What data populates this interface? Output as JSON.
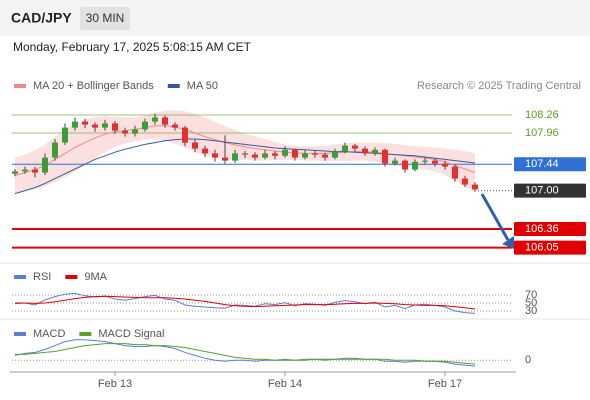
{
  "chart_data": {
    "type": "candlestick",
    "title": "CAD/JPY",
    "timeframe": "30 MIN",
    "subtitle": "Monday, February 17, 2025 5:08:15 AM CET",
    "source": "Research © 2025 Trading Central",
    "categories": [
      null,
      null,
      null,
      null,
      null,
      null,
      null,
      null,
      null,
      null,
      "Feb 13",
      null,
      null,
      null,
      null,
      null,
      null,
      null,
      null,
      null,
      null,
      null,
      null,
      null,
      null,
      null,
      null,
      "Feb 14",
      null,
      null,
      null,
      null,
      null,
      null,
      null,
      null,
      null,
      null,
      null,
      null,
      null,
      null,
      null,
      "Feb 17",
      null,
      null,
      null
    ],
    "up_color": "#3a9d3a",
    "down_color": "#e03030",
    "ylim": [
      105.81,
      109.01
    ],
    "ohlc": [
      [
        107.28,
        107.36,
        107.24,
        107.32
      ],
      [
        107.32,
        107.4,
        107.28,
        107.35
      ],
      [
        107.35,
        107.4,
        107.22,
        107.3
      ],
      [
        107.3,
        107.62,
        107.26,
        107.55
      ],
      [
        107.55,
        107.86,
        107.5,
        107.8
      ],
      [
        107.8,
        108.12,
        107.76,
        108.05
      ],
      [
        108.05,
        108.22,
        108.0,
        108.15
      ],
      [
        108.15,
        108.2,
        108.04,
        108.1
      ],
      [
        108.1,
        108.14,
        107.98,
        108.05
      ],
      [
        108.05,
        108.18,
        108.0,
        108.12
      ],
      [
        108.12,
        108.16,
        107.95,
        108.0
      ],
      [
        108.0,
        108.05,
        107.9,
        107.95
      ],
      [
        107.95,
        108.08,
        107.9,
        108.02
      ],
      [
        108.02,
        108.2,
        107.98,
        108.15
      ],
      [
        108.15,
        108.28,
        108.1,
        108.22
      ],
      [
        108.22,
        108.25,
        108.05,
        108.1
      ],
      [
        108.1,
        108.14,
        108.0,
        108.05
      ],
      [
        108.05,
        108.08,
        107.74,
        107.8
      ],
      [
        107.8,
        107.85,
        107.64,
        107.7
      ],
      [
        107.7,
        107.75,
        107.56,
        107.62
      ],
      [
        107.62,
        107.68,
        107.48,
        107.55
      ],
      [
        107.55,
        107.92,
        107.45,
        107.5
      ],
      [
        107.5,
        107.68,
        107.46,
        107.62
      ],
      [
        107.62,
        107.66,
        107.54,
        107.6
      ],
      [
        107.6,
        107.64,
        107.5,
        107.55
      ],
      [
        107.55,
        107.68,
        107.52,
        107.62
      ],
      [
        107.62,
        107.66,
        107.52,
        107.58
      ],
      [
        107.58,
        107.74,
        107.55,
        107.68
      ],
      [
        107.68,
        107.7,
        107.5,
        107.55
      ],
      [
        107.55,
        107.67,
        107.52,
        107.62
      ],
      [
        107.62,
        107.66,
        107.55,
        107.6
      ],
      [
        107.6,
        107.63,
        107.5,
        107.55
      ],
      [
        107.55,
        107.7,
        107.52,
        107.65
      ],
      [
        107.65,
        107.8,
        107.62,
        107.75
      ],
      [
        107.75,
        107.78,
        107.65,
        107.7
      ],
      [
        107.7,
        107.74,
        107.58,
        107.62
      ],
      [
        107.62,
        107.72,
        107.58,
        107.68
      ],
      [
        107.68,
        107.7,
        107.4,
        107.45
      ],
      [
        107.45,
        107.55,
        107.42,
        107.5
      ],
      [
        107.5,
        107.52,
        107.3,
        107.35
      ],
      [
        107.35,
        107.52,
        107.32,
        107.48
      ],
      [
        107.48,
        107.55,
        107.44,
        107.5
      ],
      [
        107.5,
        107.53,
        107.4,
        107.45
      ],
      [
        107.45,
        107.5,
        107.35,
        107.4
      ],
      [
        107.4,
        107.43,
        107.15,
        107.2
      ],
      [
        107.2,
        107.25,
        107.06,
        107.1
      ],
      [
        107.1,
        107.14,
        106.98,
        107.02
      ]
    ],
    "overlays": [
      {
        "name": "MA 20 + Bollinger Bands",
        "color": "#f08a8a",
        "band_color": "#fbd3d3",
        "values": [
          107.25,
          107.3,
          107.35,
          107.42,
          107.52,
          107.62,
          107.72,
          107.8,
          107.88,
          107.94,
          107.98,
          108.0,
          108.02,
          108.05,
          108.08,
          108.08,
          108.06,
          108.02,
          107.96,
          107.9,
          107.85,
          107.8,
          107.76,
          107.73,
          107.7,
          107.68,
          107.66,
          107.64,
          107.63,
          107.62,
          107.62,
          107.62,
          107.63,
          107.64,
          107.65,
          107.65,
          107.64,
          107.62,
          107.6,
          107.58,
          107.56,
          107.54,
          107.52,
          107.48,
          107.42,
          107.36,
          107.3
        ],
        "upper": [
          107.55,
          107.6,
          107.67,
          107.77,
          107.9,
          108.02,
          108.12,
          108.18,
          108.23,
          108.24,
          108.23,
          108.22,
          108.22,
          108.25,
          108.3,
          108.33,
          108.34,
          108.32,
          108.28,
          108.22,
          108.15,
          108.08,
          108.01,
          107.95,
          107.9,
          107.86,
          107.81,
          107.77,
          107.75,
          107.74,
          107.74,
          107.75,
          107.77,
          107.79,
          107.8,
          107.8,
          107.8,
          107.79,
          107.78,
          107.76,
          107.74,
          107.73,
          107.72,
          107.7,
          107.68,
          107.66,
          107.62
        ],
        "lower": [
          106.95,
          107.0,
          107.03,
          107.07,
          107.14,
          107.22,
          107.32,
          107.42,
          107.53,
          107.64,
          107.73,
          107.78,
          107.82,
          107.85,
          107.86,
          107.83,
          107.78,
          107.72,
          107.64,
          107.58,
          107.55,
          107.52,
          107.51,
          107.51,
          107.5,
          107.5,
          107.51,
          107.51,
          107.51,
          107.5,
          107.5,
          107.49,
          107.49,
          107.49,
          107.5,
          107.5,
          107.48,
          107.45,
          107.42,
          107.4,
          107.38,
          107.35,
          107.32,
          107.26,
          107.16,
          107.06,
          106.98
        ]
      },
      {
        "name": "MA 50",
        "color": "#3b5998",
        "values": [
          106.95,
          107.0,
          107.05,
          107.12,
          107.2,
          107.28,
          107.36,
          107.44,
          107.52,
          107.58,
          107.64,
          107.69,
          107.73,
          107.77,
          107.8,
          107.83,
          107.85,
          107.86,
          107.86,
          107.85,
          107.83,
          107.81,
          107.79,
          107.77,
          107.75,
          107.73,
          107.71,
          107.7,
          107.69,
          107.68,
          107.67,
          107.66,
          107.65,
          107.65,
          107.64,
          107.63,
          107.62,
          107.61,
          107.6,
          107.59,
          107.58,
          107.56,
          107.54,
          107.52,
          107.5,
          107.48,
          107.46
        ]
      }
    ],
    "levels": [
      {
        "value": 108.26,
        "label": "108.26",
        "color": "#5aa02c",
        "line": "solid",
        "boxed": false
      },
      {
        "value": 107.96,
        "label": "107.96",
        "color": "#5aa02c",
        "line": "solid",
        "boxed": false
      },
      {
        "value": 107.44,
        "label": "107.44",
        "color": "#2f6fd6",
        "line": "solid",
        "boxed": true
      },
      {
        "value": 107.0,
        "label": "107.00",
        "color": "#333333",
        "line": "dotted",
        "boxed": true
      },
      {
        "value": 106.36,
        "label": "106.36",
        "color": "#e00000",
        "line": "solid",
        "boxed": true
      },
      {
        "value": 106.05,
        "label": "106.05",
        "color": "#e00000",
        "line": "solid",
        "boxed": true
      }
    ],
    "rsi": {
      "ylim": [
        17.5,
        87.5
      ],
      "yticks": [
        70,
        50,
        30
      ],
      "series": [
        {
          "name": "RSI",
          "color": "#5b7fd6",
          "values": [
            48,
            50,
            45,
            58,
            66,
            72,
            74,
            68,
            65,
            67,
            60,
            57,
            61,
            66,
            69,
            60,
            57,
            45,
            42,
            40,
            38,
            37,
            45,
            44,
            42,
            48,
            46,
            51,
            43,
            48,
            47,
            44,
            52,
            56,
            53,
            48,
            52,
            40,
            44,
            36,
            45,
            47,
            44,
            40,
            30,
            26,
            24
          ]
        },
        {
          "name": "9MA",
          "color": "#e00000",
          "values": [
            50,
            50,
            49,
            50,
            53,
            57,
            61,
            64,
            66,
            67,
            66,
            65,
            64,
            63,
            63,
            63,
            62,
            60,
            57,
            54,
            50,
            46,
            43,
            42,
            41,
            42,
            43,
            44,
            45,
            46,
            46,
            46,
            47,
            48,
            49,
            49,
            50,
            49,
            48,
            46,
            45,
            44,
            44,
            43,
            41,
            38,
            35
          ]
        }
      ]
    },
    "macd": {
      "ylim": [
        -0.12,
        0.35
      ],
      "yticks": [
        0
      ],
      "series": [
        {
          "name": "MACD",
          "color": "#5b7fd6",
          "values": [
            0.05,
            0.07,
            0.08,
            0.11,
            0.15,
            0.19,
            0.21,
            0.21,
            0.2,
            0.19,
            0.17,
            0.15,
            0.14,
            0.14,
            0.15,
            0.14,
            0.12,
            0.08,
            0.05,
            0.02,
            0.0,
            -0.01,
            0.0,
            0.0,
            -0.01,
            0.0,
            0.0,
            0.01,
            0.0,
            0.01,
            0.01,
            0.0,
            0.01,
            0.02,
            0.02,
            0.01,
            0.01,
            -0.01,
            -0.01,
            -0.02,
            -0.01,
            -0.01,
            -0.01,
            -0.02,
            -0.04,
            -0.05,
            -0.06
          ]
        },
        {
          "name": "MACD Signal",
          "color": "#5aa02c",
          "values": [
            0.06,
            0.06,
            0.07,
            0.08,
            0.09,
            0.11,
            0.13,
            0.15,
            0.16,
            0.17,
            0.17,
            0.17,
            0.16,
            0.16,
            0.15,
            0.15,
            0.14,
            0.13,
            0.11,
            0.09,
            0.07,
            0.05,
            0.03,
            0.02,
            0.01,
            0.01,
            0.0,
            0.0,
            0.0,
            0.0,
            0.01,
            0.01,
            0.01,
            0.01,
            0.01,
            0.01,
            0.01,
            0.01,
            0.0,
            0.0,
            0.0,
            -0.01,
            -0.01,
            -0.01,
            -0.02,
            -0.03,
            -0.04
          ]
        }
      ]
    }
  }
}
